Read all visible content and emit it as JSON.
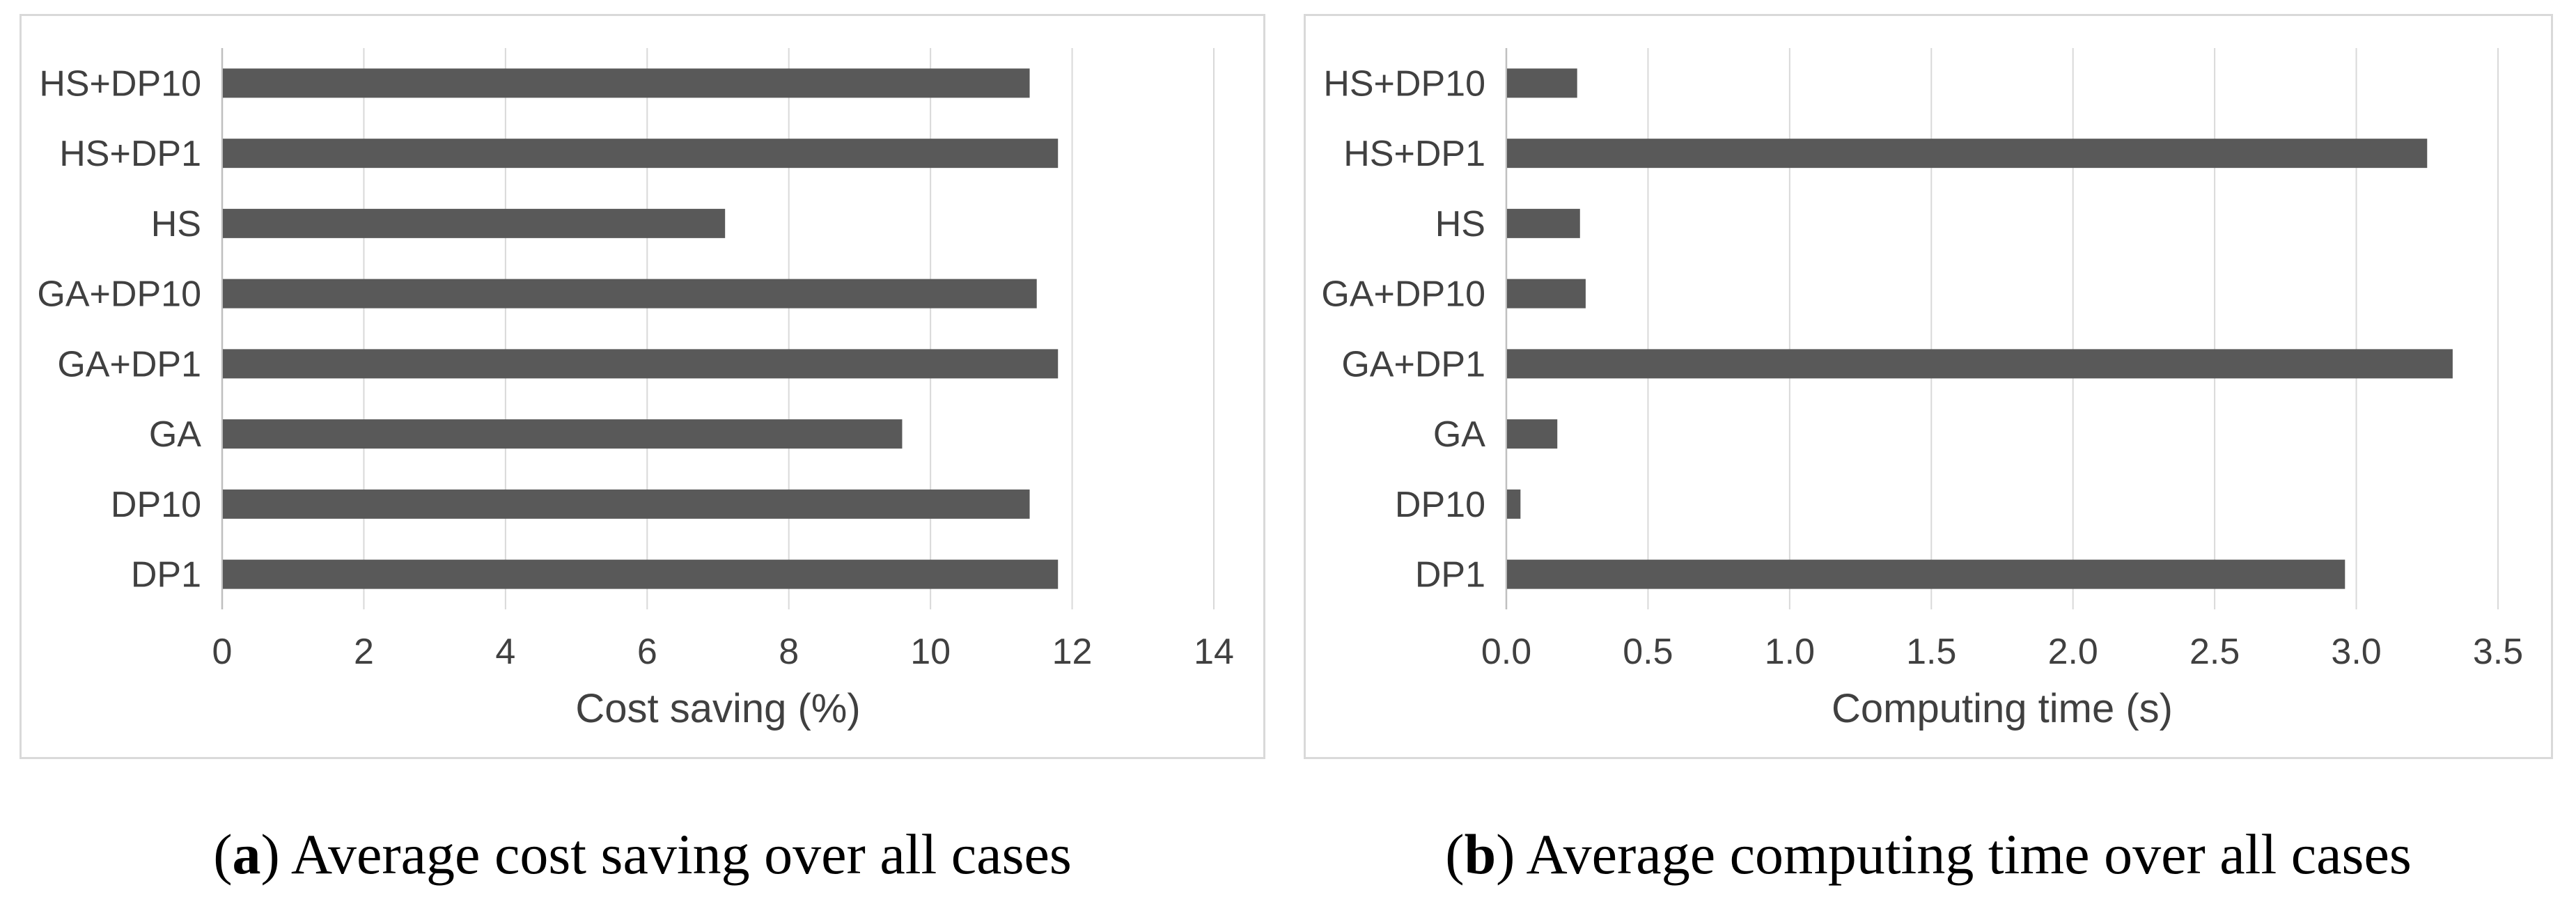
{
  "page": {
    "background_color": "#ffffff",
    "panel_border_color": "#d9d9d9"
  },
  "captions": {
    "open_paren": "(",
    "close_paren": ") ",
    "a": {
      "letter": "a",
      "text": "Average cost saving over all cases"
    },
    "b": {
      "letter": "b",
      "text": "Average computing time over all cases"
    }
  },
  "chart_data": [
    {
      "type": "bar",
      "orientation": "horizontal",
      "categories_top_to_bottom": [
        "HS+DP10",
        "HS+DP1",
        "HS",
        "GA+DP10",
        "GA+DP1",
        "GA",
        "DP10",
        "DP1"
      ],
      "values": [
        11.4,
        11.8,
        7.1,
        11.5,
        11.8,
        9.6,
        11.4,
        11.8
      ],
      "xlabel": "Cost saving (%)",
      "xlim": [
        0,
        14
      ],
      "xticks": [
        0,
        2,
        4,
        6,
        8,
        10,
        12,
        14
      ],
      "xtick_labels": [
        "0",
        "2",
        "4",
        "6",
        "8",
        "10",
        "12",
        "14"
      ],
      "grid": true,
      "legend": false,
      "bar_color": "#595959",
      "gridline_color": "#d9d9d9",
      "axis_line_color": "#bfbfbf",
      "text_color": "#404040"
    },
    {
      "type": "bar",
      "orientation": "horizontal",
      "categories_top_to_bottom": [
        "HS+DP10",
        "HS+DP1",
        "HS",
        "GA+DP10",
        "GA+DP1",
        "GA",
        "DP10",
        "DP1"
      ],
      "values": [
        0.25,
        3.25,
        0.26,
        0.28,
        3.34,
        0.18,
        0.05,
        2.96
      ],
      "xlabel": "Computing time (s)",
      "xlim": [
        0,
        3.5
      ],
      "xticks": [
        0,
        0.5,
        1.0,
        1.5,
        2.0,
        2.5,
        3.0,
        3.5
      ],
      "xtick_labels": [
        "0.0",
        "0.5",
        "1.0",
        "1.5",
        "2.0",
        "2.5",
        "3.0",
        "3.5"
      ],
      "grid": true,
      "legend": false,
      "bar_color": "#595959",
      "gridline_color": "#d9d9d9",
      "axis_line_color": "#bfbfbf",
      "text_color": "#404040"
    }
  ]
}
